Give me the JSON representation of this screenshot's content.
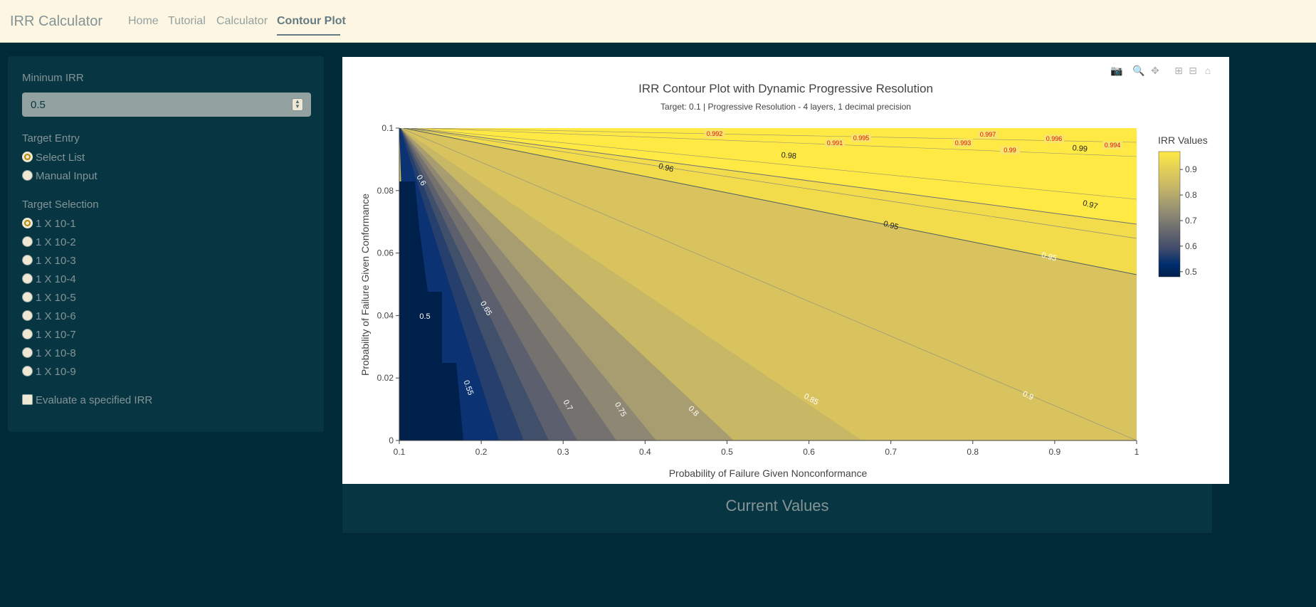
{
  "navbar": {
    "brand": "IRR Calculator",
    "links": [
      "Home",
      "Tutorial",
      "Calculator",
      "Contour Plot"
    ]
  },
  "sidebar": {
    "min_irr_label": "Mininum IRR",
    "min_irr_value": "0.5",
    "target_entry_label": "Target Entry",
    "target_entry_options": [
      "Select List",
      "Manual Input"
    ],
    "target_selection_label": "Target Selection",
    "target_selection_options": [
      "1 X 10-1",
      "1 X 10-2",
      "1 X 10-3",
      "1 X 10-4",
      "1 X 10-5",
      "1 X 10-6",
      "1 X 10-7",
      "1 X 10-8",
      "1 X 10-9"
    ],
    "evaluate_label": "Evaluate a specified IRR"
  },
  "plot": {
    "title": "IRR Contour Plot with Dynamic Progressive Resolution",
    "subtitle": "Target: 0.1 | Progressive Resolution - 4 layers, 1 decimal precision",
    "xlabel": "Probability of Failure Given Nonconformance",
    "ylabel": "Probability of Failure Given Conformance",
    "colorbar_title": "IRR Values",
    "modebar_icons": [
      "camera-icon",
      "zoom-icon",
      "pan-icon",
      "zoom-in-icon",
      "zoom-out-icon",
      "home-icon"
    ]
  },
  "chart_data": {
    "type": "contour",
    "x_ticks": [
      "0.1",
      "0.2",
      "0.3",
      "0.4",
      "0.5",
      "0.6",
      "0.7",
      "0.8",
      "0.9",
      "1"
    ],
    "y_ticks": [
      "0",
      "0.02",
      "0.04",
      "0.06",
      "0.08",
      "0.1"
    ],
    "xlim": [
      0.1,
      1
    ],
    "ylim": [
      0,
      0.1
    ],
    "colorbar_ticks": [
      "0.5",
      "0.6",
      "0.7",
      "0.8",
      "0.9"
    ],
    "colorscale": [
      "#00204c",
      "#213d6b",
      "#4c556c",
      "#6b6b6f",
      "#8c8a74",
      "#b2a86c",
      "#d2c25e",
      "#f3e049",
      "#ffe945"
    ],
    "contour_labels_white": [
      "0.5",
      "0.55",
      "0.6",
      "0.65",
      "0.7",
      "0.75",
      "0.8",
      "0.85",
      "0.9",
      "0.95"
    ],
    "contour_labels_black": [
      "0.95",
      "0.96",
      "0.97",
      "0.98",
      "0.99"
    ],
    "contour_labels_red": [
      "0.991",
      "0.992",
      "0.993",
      "0.994",
      "0.995",
      "0.996",
      "0.997",
      "0.99"
    ]
  },
  "current_values": {
    "title": "Current Values"
  }
}
